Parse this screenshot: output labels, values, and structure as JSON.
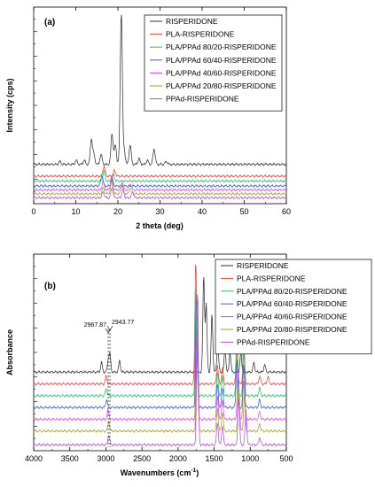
{
  "chart_data": [
    {
      "type": "line",
      "panel_label": "(a)",
      "xlabel": "2 theta (deg)",
      "ylabel": "Intensity (cps)",
      "xlim": [
        0,
        60
      ],
      "x_ticks": [
        0,
        10,
        20,
        30,
        40,
        50,
        60
      ],
      "y_tick_labels_shown": false,
      "legend": {
        "placement": "top-right"
      },
      "series": [
        {
          "name": "RISPERIDONE",
          "color": "#333333",
          "offset": 0.2,
          "peaks": [
            [
              6.2,
              0.015
            ],
            [
              10.1,
              0.02
            ],
            [
              12.0,
              0.02
            ],
            [
              13.7,
              0.13
            ],
            [
              14.3,
              0.05
            ],
            [
              16.0,
              0.05
            ],
            [
              18.6,
              0.16
            ],
            [
              19.4,
              0.1
            ],
            [
              20.8,
              0.78
            ],
            [
              21.5,
              0.07
            ],
            [
              22.9,
              0.1
            ],
            [
              25.0,
              0.03
            ],
            [
              27.0,
              0.02
            ],
            [
              28.6,
              0.08
            ],
            [
              31.5,
              0.015
            ]
          ]
        },
        {
          "name": "PLA-RISPERIDONE",
          "color": "#e8453c",
          "offset": 0.14,
          "peaks": [
            [
              16.7,
              0.05
            ],
            [
              19.2,
              0.03
            ]
          ]
        },
        {
          "name": "PLA/PPAd 80/20-RISPERIDONE",
          "color": "#22c55e",
          "offset": 0.115,
          "peaks": [
            [
              16.7,
              0.05
            ],
            [
              19.0,
              0.03
            ]
          ]
        },
        {
          "name": "PLA/PPAd 60/40-RISPERIDONE",
          "color": "#3b5bdb",
          "offset": 0.09,
          "peaks": [
            [
              16.2,
              0.055
            ],
            [
              18.6,
              0.04
            ]
          ]
        },
        {
          "name": "PLA/PPAd 40/60-RISPERIDONE",
          "color": "#d946ef",
          "offset": 0.07,
          "peaks": [
            [
              16.5,
              0.04
            ],
            [
              18.5,
              0.07
            ],
            [
              21.0,
              0.04
            ],
            [
              23.0,
              0.03
            ]
          ]
        },
        {
          "name": "PLA/PPAd 20/80-RISPERIDONE",
          "color": "#a3a31f",
          "offset": 0.05,
          "peaks": [
            [
              16.5,
              0.03
            ],
            [
              18.5,
              0.06
            ],
            [
              21.0,
              0.045
            ],
            [
              23.0,
              0.03
            ]
          ]
        },
        {
          "name": "PPAd-RISPERIDONE",
          "color": "#b54fd6",
          "offset": 0.03,
          "peaks": [
            [
              16.5,
              0.03
            ],
            [
              18.6,
              0.05
            ],
            [
              21.2,
              0.04
            ],
            [
              23.5,
              0.03
            ]
          ]
        }
      ]
    },
    {
      "type": "line",
      "panel_label": "(b)",
      "xlabel": "Wavenumbers (cm",
      "xlabel_sup": "-1",
      "xlabel_close": ")",
      "ylabel": "Absorbance",
      "xlim": [
        4000,
        500
      ],
      "x_ticks": [
        4000,
        3500,
        3000,
        2500,
        2000,
        1500,
        1000,
        500
      ],
      "y_tick_labels_shown": false,
      "legend": {
        "placement": "top-right"
      },
      "annotations": [
        {
          "text": "2967.87",
          "x": 2967.87
        },
        {
          "text": "2943.77",
          "x": 2943.77
        }
      ],
      "series": [
        {
          "name": "RISPERIDONE",
          "color": "#333333",
          "offset": 0.4,
          "peaks": [
            [
              3060,
              0.05
            ],
            [
              2967.87,
              0.06
            ],
            [
              2943.77,
              0.09
            ],
            [
              2810,
              0.06
            ],
            [
              1645,
              0.5
            ],
            [
              1610,
              0.35
            ],
            [
              1530,
              0.3
            ],
            [
              1450,
              0.15
            ],
            [
              1350,
              0.12
            ],
            [
              1280,
              0.1
            ],
            [
              1130,
              0.1
            ],
            [
              950,
              0.05
            ],
            [
              800,
              0.04
            ]
          ]
        },
        {
          "name": "PLA-RISPERIDONE",
          "color": "#e8453c",
          "offset": 0.34,
          "peaks": [
            [
              2995,
              0.04
            ],
            [
              1755,
              0.64
            ],
            [
              1455,
              0.1
            ],
            [
              1385,
              0.08
            ],
            [
              1185,
              0.25
            ],
            [
              1090,
              0.22
            ],
            [
              870,
              0.04
            ],
            [
              755,
              0.04
            ]
          ]
        },
        {
          "name": "PLA/PPAd 80/20-RISPERIDONE",
          "color": "#22c55e",
          "offset": 0.28,
          "peaks": [
            [
              2995,
              0.04
            ],
            [
              1750,
              0.55
            ],
            [
              1455,
              0.12
            ],
            [
              1385,
              0.1
            ],
            [
              1185,
              0.25
            ],
            [
              1090,
              0.22
            ],
            [
              870,
              0.04
            ]
          ]
        },
        {
          "name": "PLA/PPAd 60/40-RISPERIDONE",
          "color": "#3b5bdb",
          "offset": 0.22,
          "peaks": [
            [
              2990,
              0.04
            ],
            [
              1745,
              0.56
            ],
            [
              1455,
              0.12
            ],
            [
              1385,
              0.1
            ],
            [
              1185,
              0.25
            ],
            [
              1090,
              0.22
            ],
            [
              870,
              0.04
            ]
          ]
        },
        {
          "name": "PLA/PPAd 40/60-RISPERIDONE",
          "color": "#d946ef",
          "offset": 0.16,
          "peaks": [
            [
              2970,
              0.05
            ],
            [
              1740,
              0.58
            ],
            [
              1455,
              0.12
            ],
            [
              1385,
              0.1
            ],
            [
              1170,
              0.26
            ],
            [
              1090,
              0.2
            ],
            [
              870,
              0.04
            ]
          ]
        },
        {
          "name": "PLA/PPAd 20/80-RISPERIDONE",
          "color": "#a3a31f",
          "offset": 0.1,
          "peaks": [
            [
              2960,
              0.05
            ],
            [
              1735,
              0.6
            ],
            [
              1455,
              0.12
            ],
            [
              1385,
              0.1
            ],
            [
              1160,
              0.25
            ],
            [
              1080,
              0.2
            ],
            [
              870,
              0.04
            ]
          ]
        },
        {
          "name": "PPAd-RISPERIDONE",
          "color": "#b54fd6",
          "offset": 0.03,
          "peaks": [
            [
              2960,
              0.05
            ],
            [
              1730,
              0.8
            ],
            [
              1455,
              0.12
            ],
            [
              1385,
              0.1
            ],
            [
              1160,
              0.25
            ],
            [
              1060,
              0.18
            ],
            [
              870,
              0.04
            ]
          ]
        }
      ]
    }
  ]
}
